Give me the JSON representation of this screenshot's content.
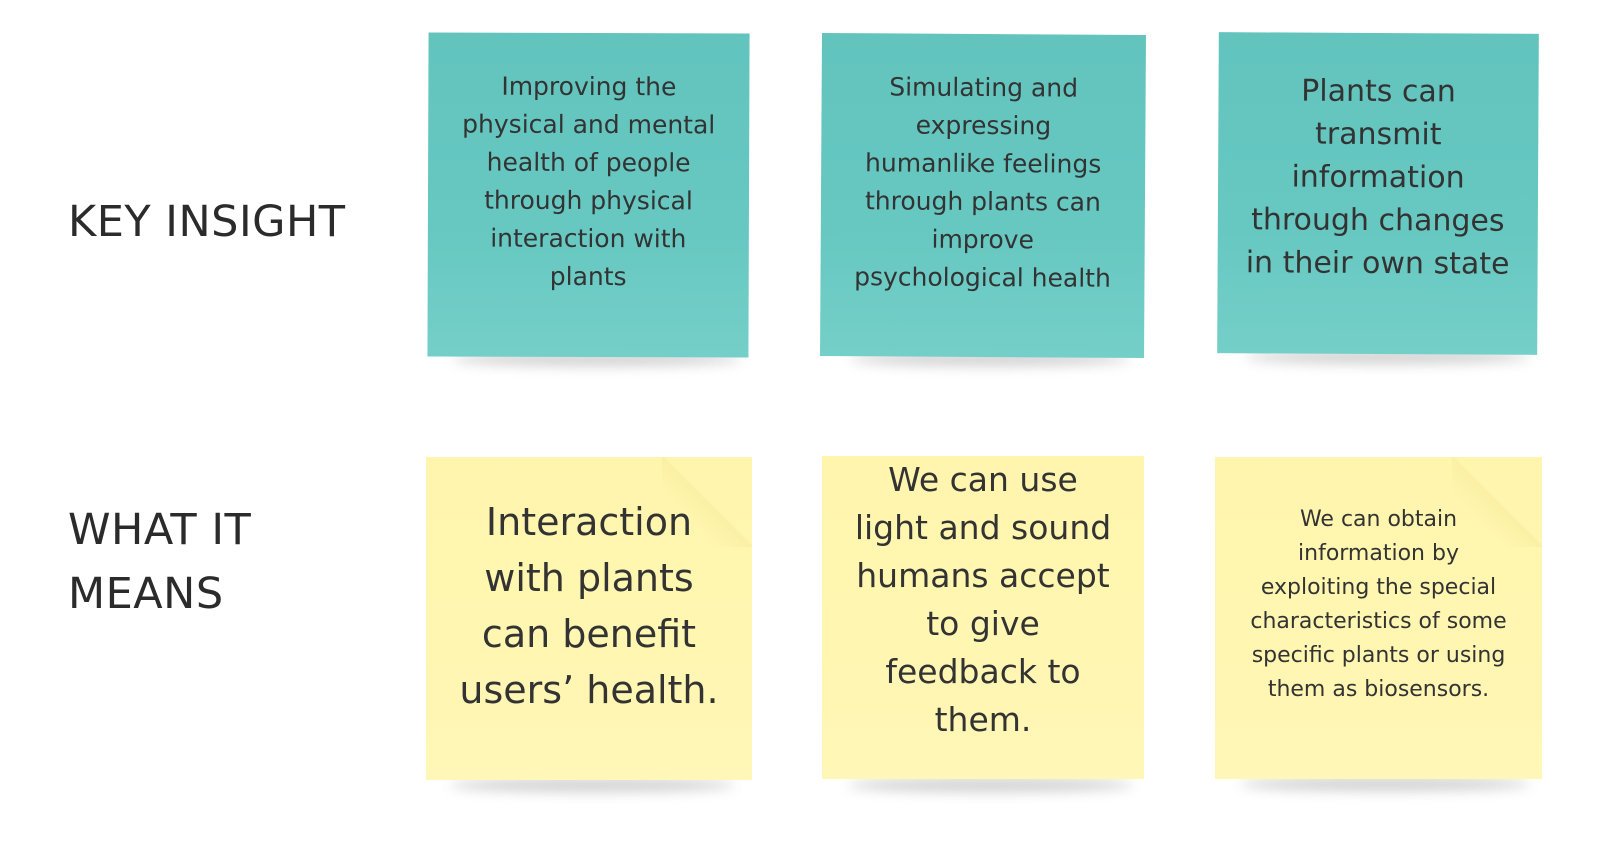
{
  "rows": {
    "key_insight_label": "KEY INSIGHT",
    "what_it_means_label": "WHAT IT\nMEANS"
  },
  "key_insights": [
    {
      "text": "Improving the physical and mental health of people through physical interaction with plants"
    },
    {
      "text": "Simulating and expressing humanlike feelings through plants can improve psychological health"
    },
    {
      "text": "Plants can transmit information through changes in their own state"
    }
  ],
  "what_it_means": [
    {
      "text": "Interaction with plants can benefit users’ health."
    },
    {
      "text": "We can use light and sound humans accept to give feedback to them."
    },
    {
      "text": "We can obtain information by exploiting the special characteristics of some specific plants or using them as biosensors."
    }
  ],
  "colors": {
    "teal_note": "#66c8c1",
    "yellow_note": "#fff6b2",
    "label_text": "#2b2b2b",
    "note_text": "#333333"
  }
}
